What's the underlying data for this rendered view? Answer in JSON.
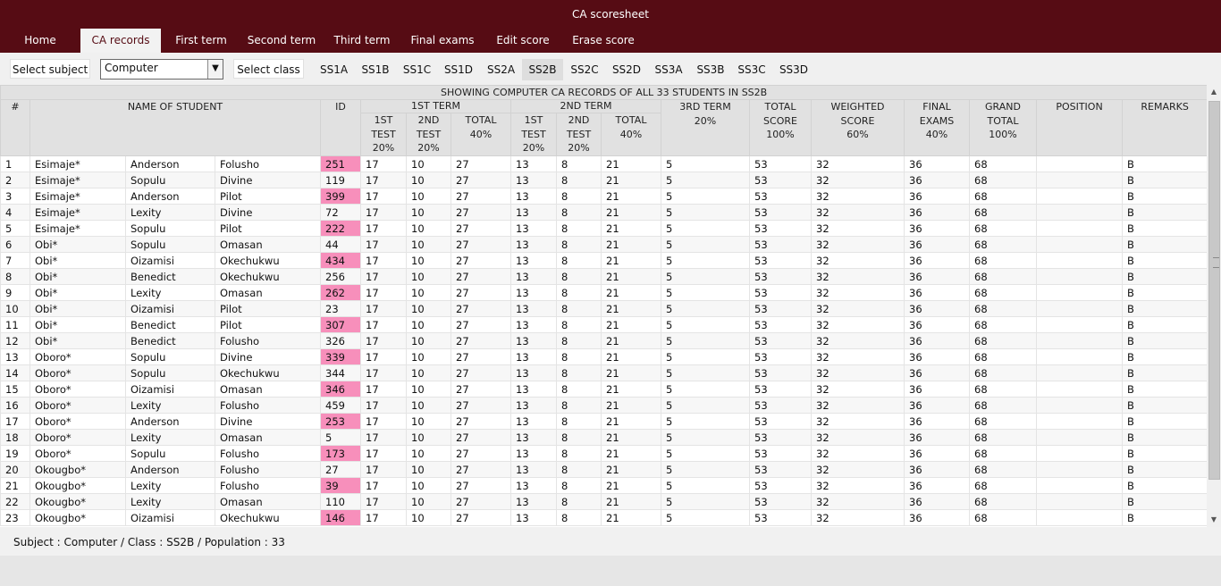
{
  "window": {
    "title": "CA scoresheet"
  },
  "nav": {
    "tabs": [
      {
        "label": "Home",
        "active": false
      },
      {
        "label": "CA records",
        "active": true
      },
      {
        "label": "First term",
        "active": false
      },
      {
        "label": "Second term",
        "active": false
      },
      {
        "label": "Third term",
        "active": false
      },
      {
        "label": "Final exams",
        "active": false
      },
      {
        "label": "Edit score",
        "active": false
      },
      {
        "label": "Erase score",
        "active": false
      }
    ]
  },
  "toolbar": {
    "select_subject_label": "Select subject",
    "subject_value": "Computer",
    "select_class_label": "Select class",
    "classes": [
      "SS1A",
      "SS1B",
      "SS1C",
      "SS1D",
      "SS2A",
      "SS2B",
      "SS2C",
      "SS2D",
      "SS3A",
      "SS3B",
      "SS3C",
      "SS3D"
    ],
    "active_class": "SS2B"
  },
  "table": {
    "banner": "SHOWING COMPUTER CA RECORDS OF ALL 33 STUDENTS IN SS2B",
    "headers": {
      "num": "#",
      "name": "NAME OF STUDENT",
      "id": "ID",
      "term1": "1ST TERM",
      "term2": "2ND TERM",
      "term3": "3RD TERM",
      "term3_pct": "20%",
      "total_score": [
        "TOTAL",
        "SCORE",
        "100%"
      ],
      "weighted": [
        "WEIGHTED",
        "SCORE",
        "60%"
      ],
      "final_exams": [
        "FINAL",
        "EXAMS",
        "40%"
      ],
      "grand_total": [
        "GRAND",
        "TOTAL",
        "100%"
      ],
      "position": "POSITION",
      "remarks": "REMARKS",
      "t1_test1": [
        "1ST",
        "TEST",
        "20%"
      ],
      "t1_test2": [
        "2ND",
        "TEST",
        "20%"
      ],
      "t1_total": [
        "TOTAL",
        "40%"
      ],
      "t2_test1": [
        "1ST",
        "TEST",
        "20%"
      ],
      "t2_test2": [
        "2ND",
        "TEST",
        "20%"
      ],
      "t2_total": [
        "TOTAL",
        "40%"
      ]
    },
    "rows": [
      [
        "1",
        "Esimaje*",
        "Anderson",
        "Folusho",
        "251",
        "17",
        "10",
        "27",
        "13",
        "8",
        "21",
        "5",
        "53",
        "32",
        "36",
        "68",
        "",
        "B"
      ],
      [
        "2",
        "Esimaje*",
        "Sopulu",
        "Divine",
        "119",
        "17",
        "10",
        "27",
        "13",
        "8",
        "21",
        "5",
        "53",
        "32",
        "36",
        "68",
        "",
        "B"
      ],
      [
        "3",
        "Esimaje*",
        "Anderson",
        "Pilot",
        "399",
        "17",
        "10",
        "27",
        "13",
        "8",
        "21",
        "5",
        "53",
        "32",
        "36",
        "68",
        "",
        "B"
      ],
      [
        "4",
        "Esimaje*",
        "Lexity",
        "Divine",
        "72",
        "17",
        "10",
        "27",
        "13",
        "8",
        "21",
        "5",
        "53",
        "32",
        "36",
        "68",
        "",
        "B"
      ],
      [
        "5",
        "Esimaje*",
        "Sopulu",
        "Pilot",
        "222",
        "17",
        "10",
        "27",
        "13",
        "8",
        "21",
        "5",
        "53",
        "32",
        "36",
        "68",
        "",
        "B"
      ],
      [
        "6",
        "Obi*",
        "Sopulu",
        "Omasan",
        "44",
        "17",
        "10",
        "27",
        "13",
        "8",
        "21",
        "5",
        "53",
        "32",
        "36",
        "68",
        "",
        "B"
      ],
      [
        "7",
        "Obi*",
        "Oizamisi",
        "Okechukwu",
        "434",
        "17",
        "10",
        "27",
        "13",
        "8",
        "21",
        "5",
        "53",
        "32",
        "36",
        "68",
        "",
        "B"
      ],
      [
        "8",
        "Obi*",
        "Benedict",
        "Okechukwu",
        "256",
        "17",
        "10",
        "27",
        "13",
        "8",
        "21",
        "5",
        "53",
        "32",
        "36",
        "68",
        "",
        "B"
      ],
      [
        "9",
        "Obi*",
        "Lexity",
        "Omasan",
        "262",
        "17",
        "10",
        "27",
        "13",
        "8",
        "21",
        "5",
        "53",
        "32",
        "36",
        "68",
        "",
        "B"
      ],
      [
        "10",
        "Obi*",
        "Oizamisi",
        "Pilot",
        "23",
        "17",
        "10",
        "27",
        "13",
        "8",
        "21",
        "5",
        "53",
        "32",
        "36",
        "68",
        "",
        "B"
      ],
      [
        "11",
        "Obi*",
        "Benedict",
        "Pilot",
        "307",
        "17",
        "10",
        "27",
        "13",
        "8",
        "21",
        "5",
        "53",
        "32",
        "36",
        "68",
        "",
        "B"
      ],
      [
        "12",
        "Obi*",
        "Benedict",
        "Folusho",
        "326",
        "17",
        "10",
        "27",
        "13",
        "8",
        "21",
        "5",
        "53",
        "32",
        "36",
        "68",
        "",
        "B"
      ],
      [
        "13",
        "Oboro*",
        "Sopulu",
        "Divine",
        "339",
        "17",
        "10",
        "27",
        "13",
        "8",
        "21",
        "5",
        "53",
        "32",
        "36",
        "68",
        "",
        "B"
      ],
      [
        "14",
        "Oboro*",
        "Sopulu",
        "Okechukwu",
        "344",
        "17",
        "10",
        "27",
        "13",
        "8",
        "21",
        "5",
        "53",
        "32",
        "36",
        "68",
        "",
        "B"
      ],
      [
        "15",
        "Oboro*",
        "Oizamisi",
        "Omasan",
        "346",
        "17",
        "10",
        "27",
        "13",
        "8",
        "21",
        "5",
        "53",
        "32",
        "36",
        "68",
        "",
        "B"
      ],
      [
        "16",
        "Oboro*",
        "Lexity",
        "Folusho",
        "459",
        "17",
        "10",
        "27",
        "13",
        "8",
        "21",
        "5",
        "53",
        "32",
        "36",
        "68",
        "",
        "B"
      ],
      [
        "17",
        "Oboro*",
        "Anderson",
        "Divine",
        "253",
        "17",
        "10",
        "27",
        "13",
        "8",
        "21",
        "5",
        "53",
        "32",
        "36",
        "68",
        "",
        "B"
      ],
      [
        "18",
        "Oboro*",
        "Lexity",
        "Omasan",
        "5",
        "17",
        "10",
        "27",
        "13",
        "8",
        "21",
        "5",
        "53",
        "32",
        "36",
        "68",
        "",
        "B"
      ],
      [
        "19",
        "Oboro*",
        "Sopulu",
        "Folusho",
        "173",
        "17",
        "10",
        "27",
        "13",
        "8",
        "21",
        "5",
        "53",
        "32",
        "36",
        "68",
        "",
        "B"
      ],
      [
        "20",
        "Okougbo*",
        "Anderson",
        "Folusho",
        "27",
        "17",
        "10",
        "27",
        "13",
        "8",
        "21",
        "5",
        "53",
        "32",
        "36",
        "68",
        "",
        "B"
      ],
      [
        "21",
        "Okougbo*",
        "Lexity",
        "Folusho",
        "39",
        "17",
        "10",
        "27",
        "13",
        "8",
        "21",
        "5",
        "53",
        "32",
        "36",
        "68",
        "",
        "B"
      ],
      [
        "22",
        "Okougbo*",
        "Lexity",
        "Omasan",
        "110",
        "17",
        "10",
        "27",
        "13",
        "8",
        "21",
        "5",
        "53",
        "32",
        "36",
        "68",
        "",
        "B"
      ],
      [
        "23",
        "Okougbo*",
        "Oizamisi",
        "Okechukwu",
        "146",
        "17",
        "10",
        "27",
        "13",
        "8",
        "21",
        "5",
        "53",
        "32",
        "36",
        "68",
        "",
        "B"
      ]
    ],
    "highlighted_rows": [
      1,
      3,
      5,
      7,
      9,
      11,
      13,
      15,
      17,
      19,
      21,
      23
    ],
    "highlight_color": "#f78fbb"
  },
  "status": {
    "text": "Subject : Computer / Class : SS2B / Population : 33"
  }
}
